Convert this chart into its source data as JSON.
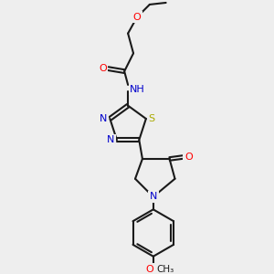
{
  "background_color": "#eeeeee",
  "bond_color": "#1a1a1a",
  "atom_colors": {
    "O": "#ff0000",
    "N": "#0000cc",
    "S": "#aaaa00",
    "C": "#1a1a1a"
  },
  "figsize": [
    3.0,
    3.0
  ],
  "dpi": 100
}
